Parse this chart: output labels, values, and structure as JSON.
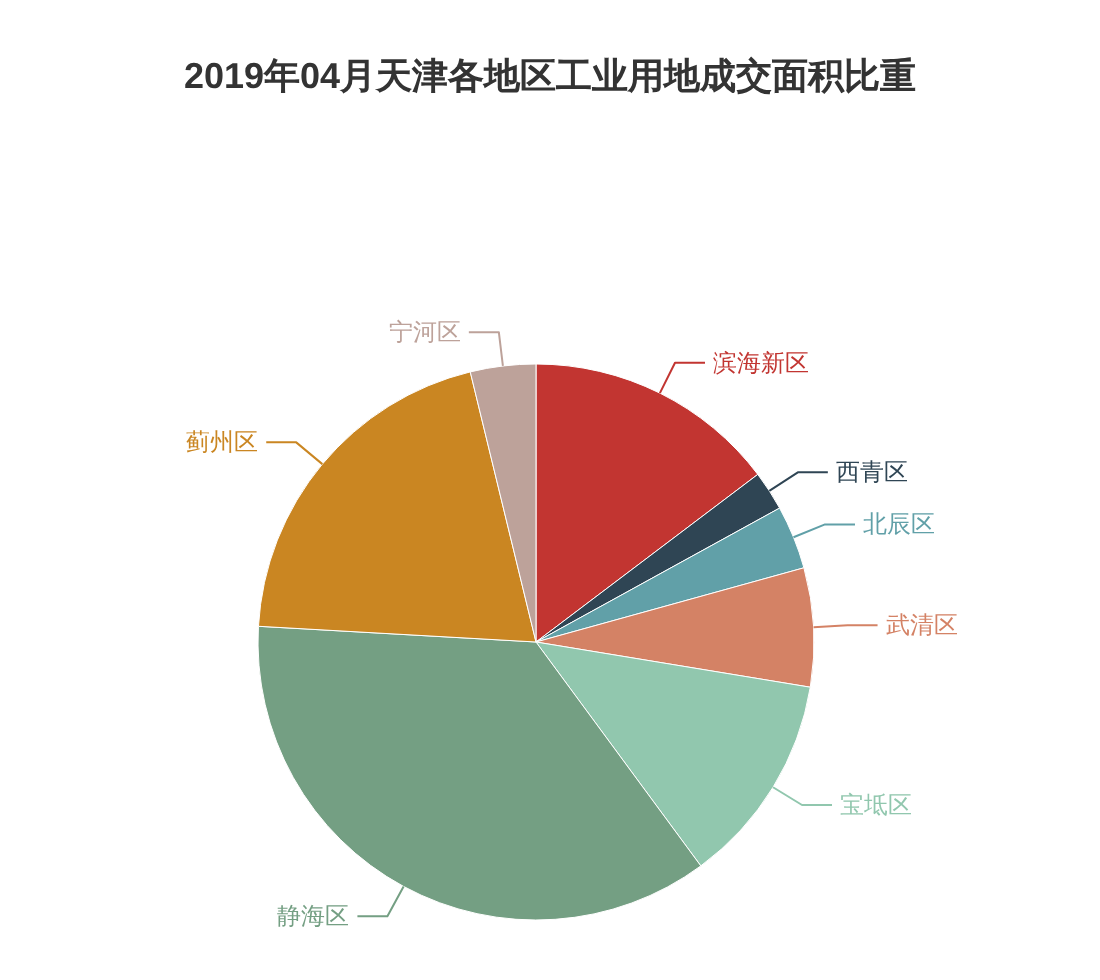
{
  "chart_data": {
    "type": "pie",
    "title": "2019年04月天津各地区工业用地成交面积比重",
    "categories": [
      "滨海新区",
      "西青区",
      "北辰区",
      "武清区",
      "宝坻区",
      "静海区",
      "蓟州区",
      "宁河区"
    ],
    "values": [
      14.7,
      2.3,
      3.7,
      6.9,
      12.3,
      36.0,
      20.3,
      3.8
    ],
    "colors": [
      "#c23531",
      "#2f4554",
      "#61a0a8",
      "#d48265",
      "#91c7ae",
      "#749f83",
      "#ca8622",
      "#bda29a"
    ]
  }
}
